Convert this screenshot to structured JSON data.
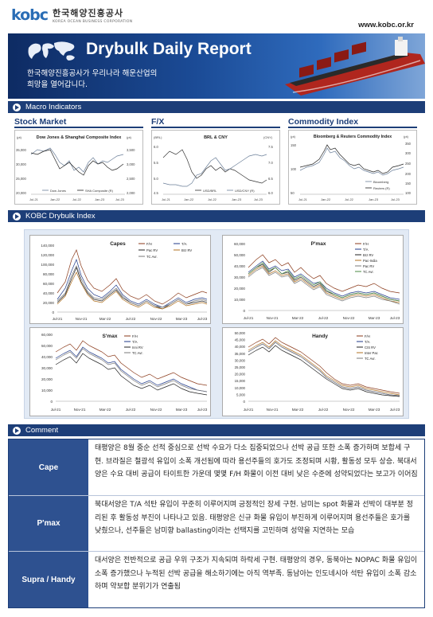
{
  "header": {
    "logo_mark": "kobc",
    "logo_korean": "한국해양진흥공사",
    "logo_english": "KOREA OCEAN BUSINESS CORPORATION",
    "website": "www.kobc.or.kr"
  },
  "banner": {
    "title": "Drybulk Daily Report",
    "subtitle_line1": "한국해양진흥공사가 우리나라 해운산업의",
    "subtitle_line2": "희망을 열어갑니다."
  },
  "sections": {
    "macro": "Macro Indicators",
    "drybulk": "KOBC Drybulk Index",
    "comment": "Comment"
  },
  "macro": {
    "stock_market": {
      "heading": "Stock Market",
      "chart_title": "Dow Jones & Shanghai Composite Index",
      "left_unit": "(pt)",
      "right_unit": "(pt)",
      "left_ticks": [
        "35,000",
        "30,000",
        "25,000",
        "20,000"
      ],
      "right_ticks": [
        "3,500",
        "3,000",
        "2,500",
        "2,000"
      ],
      "x_ticks": [
        "Jul-21",
        "Jan-22",
        "Jul-22",
        "Jan-23",
        "Jul-23"
      ],
      "legend": [
        "Dow Jones",
        "SHA Composite (R)"
      ]
    },
    "fx": {
      "heading": "F/X",
      "chart_title": "BRL & CNY",
      "left_unit": "(BRL)",
      "right_unit": "(CNY)",
      "left_ticks": [
        "6.0",
        "5.5",
        "5.0",
        "4.5"
      ],
      "right_ticks": [
        "7.5",
        "7.0",
        "6.5",
        "6.0"
      ],
      "x_ticks": [
        "Jul-21",
        "Jan-22",
        "Jul-22",
        "Jan-23",
        "Jul-23"
      ],
      "legend": [
        "USD/BRL",
        "USD/CNY (R)"
      ]
    },
    "commodity": {
      "heading": "Commodity Index",
      "chart_title": "Bloomberg & Reuters Commodity Index",
      "left_unit": "(pt)",
      "right_unit": "(pt)",
      "left_ticks": [
        "150",
        "100",
        "50"
      ],
      "right_ticks": [
        "350",
        "300",
        "250",
        "200",
        "150",
        "100"
      ],
      "x_ticks": [
        "Jul-21",
        "Jan-22",
        "Jul-22",
        "Jan-23",
        "Jul-23"
      ],
      "legend": [
        "Bloomberg",
        "Reuters (R)"
      ]
    }
  },
  "drybulk_charts": [
    {
      "title": "Capes",
      "y_ticks": [
        "140,000",
        "120,000",
        "100,000",
        "80,000",
        "60,000",
        "40,000",
        "20,000",
        "0"
      ],
      "x_ticks": [
        "Jul-21",
        "Nov-21",
        "Mar-22",
        "Jul-22",
        "Nov-22",
        "Mar-23",
        "Jul-23"
      ],
      "legend": [
        "F/H",
        "T/A",
        "Pac RV",
        "Brz RV",
        "TC Avr."
      ]
    },
    {
      "title": "P'max",
      "y_ticks": [
        "60,000",
        "50,000",
        "40,000",
        "30,000",
        "20,000",
        "10,000",
        "0"
      ],
      "x_ticks": [
        "Jul-21",
        "Nov-21",
        "Mar-22",
        "Jul-22",
        "Nov-22",
        "Mar-23",
        "Jul-23"
      ],
      "legend": [
        "F/H",
        "T/A",
        "Brz RV",
        "Pac-India",
        "Pac RV",
        "TC Avr."
      ]
    },
    {
      "title": "S'max",
      "y_ticks": [
        "60,000",
        "50,000",
        "40,000",
        "30,000",
        "20,000",
        "10,000",
        "0"
      ],
      "x_ticks": [
        "Jul-21",
        "Nov-21",
        "Mar-22",
        "Jul-22",
        "Nov-22",
        "Mar-23",
        "Jul-23"
      ],
      "legend": [
        "F/H",
        "T/A",
        "Inni RV",
        "TC Avr."
      ]
    },
    {
      "title": "Handy",
      "y_ticks": [
        "50,000",
        "45,000",
        "40,000",
        "35,000",
        "30,000",
        "25,000",
        "20,000",
        "15,000",
        "10,000",
        "5,000",
        "0"
      ],
      "x_ticks": [
        "Jul-21",
        "Nov-21",
        "Mar-22",
        "Jul-22",
        "Nov-22",
        "Mar-23",
        "Jul-23"
      ],
      "legend": [
        "F/H",
        "T/A",
        "CIS RV",
        "Inter Pac",
        "TC Avr."
      ]
    }
  ],
  "comments": [
    {
      "label": "Cape",
      "text": "태평양은 8월 중순 선적 중심으로 선박 수요가 다소 집중되었으나 선박 공급 또한 소폭 증가하며 보합세 구현. 브라질은 철광석 유입이 소폭 개선됨에 따라 용선주들의 호가도 조정되며 시황, 활동성 모두 상승. 북대서양은 수요 대비 공급이 타이트한 가운데 몇몇 F/H 화물이 이전 대비 낮은 수준에 성약되었다는 보고가 이어짐"
    },
    {
      "label": "P'max",
      "text": "북대서양은 T/A 석탄 유입이 꾸준히 이루어지며 긍정적인 장세 구현. 남미는 spot 화물과 선박이 대부분 정리된 후 활동성 부진이 나타나고 있음. 태평양은 신규 화물 유입이 부진하게 이루어지며 용선주들은 호가를 낮췄으나, 선주들은 남미향 ballasting이라는 선택지를 고민하며 성약을 지연하는 모습"
    },
    {
      "label": "Supra / Handy",
      "text": "대서양은 전반적으로 공급 우위 구조가 지속되며 하락세 구현. 태평양의 경우, 동북아는 NOPAC 화물 유입이 소폭 증가했으나 누적된 선박 공급을 해소하기에는 아직 역부족. 동남아는 인도네시아 석탄 유입이 소폭 감소하며 약보합 분위기가 연출됨"
    }
  ],
  "colors": {
    "navy": "#1d3e78",
    "label_bg": "#2e5190",
    "series": [
      "#8b3a1a",
      "#1f3a8a",
      "#222222",
      "#b07020",
      "#7a7a7a",
      "#4a8a40"
    ]
  }
}
